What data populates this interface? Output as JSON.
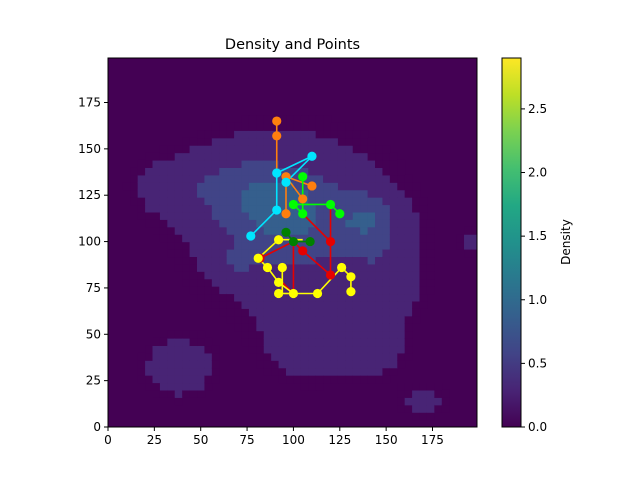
{
  "chart_data": {
    "type": "scatter",
    "title": "Density and Points",
    "xlim": [
      0,
      199
    ],
    "ylim": [
      0,
      199
    ],
    "x_ticks": [
      0,
      25,
      50,
      75,
      100,
      125,
      150,
      175
    ],
    "y_ticks": [
      0,
      25,
      50,
      75,
      100,
      125,
      150,
      175
    ],
    "colorbar": {
      "label": "Density",
      "range": [
        0,
        2.9
      ],
      "ticks": [
        "0.0",
        "0.5",
        "1.0",
        "1.5",
        "2.0",
        "2.5"
      ],
      "colormap": "viridis"
    },
    "density_blobs": [
      {
        "cx": 100,
        "cy": 110,
        "rx": 50,
        "ry": 42,
        "amp": 0.55
      },
      {
        "cx": 140,
        "cy": 112,
        "rx": 16,
        "ry": 14,
        "amp": 0.45
      },
      {
        "cx": 95,
        "cy": 118,
        "rx": 22,
        "ry": 18,
        "amp": 0.35
      },
      {
        "cx": 65,
        "cy": 130,
        "rx": 28,
        "ry": 20,
        "amp": 0.3
      },
      {
        "cx": 30,
        "cy": 130,
        "rx": 18,
        "ry": 14,
        "amp": 0.2
      },
      {
        "cx": 38,
        "cy": 32,
        "rx": 18,
        "ry": 15,
        "amp": 0.35
      },
      {
        "cx": 110,
        "cy": 45,
        "rx": 25,
        "ry": 20,
        "amp": 0.3
      },
      {
        "cx": 145,
        "cy": 42,
        "rx": 15,
        "ry": 14,
        "amp": 0.25
      },
      {
        "cx": 170,
        "cy": 15,
        "rx": 15,
        "ry": 10,
        "amp": 0.2
      },
      {
        "cx": 150,
        "cy": 80,
        "rx": 20,
        "ry": 25,
        "amp": 0.25
      },
      {
        "cx": 70,
        "cy": 90,
        "rx": 10,
        "ry": 8,
        "amp": 0.2
      },
      {
        "cx": 195,
        "cy": 100,
        "rx": 6,
        "ry": 6,
        "amp": 0.25
      }
    ],
    "series": [
      {
        "color": "#ff7f0e",
        "segments": [
          [
            [
              91,
              165
            ],
            [
              91,
              157
            ]
          ],
          [
            [
              91,
              157
            ],
            [
              91,
              137
            ]
          ],
          [
            [
              96,
              135
            ],
            [
              96,
              115
            ]
          ],
          [
            [
              96,
              135
            ],
            [
              105,
              123
            ]
          ],
          [
            [
              96,
              135
            ],
            [
              110,
              130
            ]
          ]
        ],
        "points": [
          [
            91,
            165
          ],
          [
            91,
            157
          ],
          [
            96,
            135
          ],
          [
            96,
            115
          ],
          [
            105,
            123
          ],
          [
            110,
            130
          ]
        ]
      },
      {
        "color": "#00e5ff",
        "segments": [
          [
            [
              91,
              137
            ],
            [
              110,
              146
            ]
          ],
          [
            [
              91,
              137
            ],
            [
              91,
              117
            ]
          ],
          [
            [
              91,
              117
            ],
            [
              77,
              103
            ]
          ],
          [
            [
              96,
              132
            ],
            [
              110,
              146
            ]
          ]
        ],
        "points": [
          [
            91,
            137
          ],
          [
            110,
            146
          ],
          [
            96,
            132
          ],
          [
            91,
            117
          ],
          [
            77,
            103
          ]
        ]
      },
      {
        "color": "#00ff00",
        "segments": [
          [
            [
              105,
              135
            ],
            [
              105,
              115
            ]
          ],
          [
            [
              100,
              120
            ],
            [
              120,
              120
            ]
          ],
          [
            [
              120,
              120
            ],
            [
              125,
              115
            ]
          ],
          [
            [
              100,
              120
            ],
            [
              105,
              115
            ]
          ]
        ],
        "points": [
          [
            105,
            135
          ],
          [
            100,
            120
          ],
          [
            120,
            120
          ],
          [
            125,
            115
          ],
          [
            105,
            115
          ]
        ]
      },
      {
        "color": "#008000",
        "segments": [
          [
            [
              96,
              105
            ],
            [
              100,
              100
            ]
          ],
          [
            [
              100,
              100
            ],
            [
              109,
              100
            ]
          ]
        ],
        "points": [
          [
            96,
            105
          ],
          [
            100,
            100
          ],
          [
            109,
            100
          ]
        ]
      },
      {
        "color": "#e60000",
        "segments": [
          [
            [
              120,
              120
            ],
            [
              120,
              100
            ]
          ],
          [
            [
              105,
              115
            ],
            [
              120,
              100
            ]
          ],
          [
            [
              105,
              95
            ],
            [
              120,
              82
            ]
          ],
          [
            [
              120,
              100
            ],
            [
              120,
              82
            ]
          ],
          [
            [
              82,
              91
            ],
            [
              100,
              100
            ]
          ],
          [
            [
              100,
              100
            ],
            [
              105,
              95
            ]
          ],
          [
            [
              100,
              100
            ],
            [
              100,
              72
            ]
          ],
          [
            [
              92,
              80
            ],
            [
              100,
              72
            ]
          ]
        ],
        "points": [
          [
            120,
            100
          ],
          [
            105,
            95
          ],
          [
            120,
            82
          ],
          [
            82,
            91
          ]
        ]
      },
      {
        "color": "#ffff00",
        "segments": [
          [
            [
              81,
              91
            ],
            [
              92,
              101
            ]
          ],
          [
            [
              92,
              101
            ],
            [
              105,
              101
            ]
          ],
          [
            [
              81,
              91
            ],
            [
              86,
              86
            ]
          ],
          [
            [
              86,
              86
            ],
            [
              92,
              78
            ]
          ],
          [
            [
              94,
              86
            ],
            [
              94,
              72
            ]
          ],
          [
            [
              92,
              72
            ],
            [
              100,
              72
            ]
          ],
          [
            [
              100,
              72
            ],
            [
              113,
              72
            ]
          ],
          [
            [
              113,
              72
            ],
            [
              126,
              86
            ]
          ],
          [
            [
              126,
              86
            ],
            [
              131,
              81
            ]
          ],
          [
            [
              131,
              81
            ],
            [
              131,
              73
            ]
          ],
          [
            [
              92,
              78
            ],
            [
              100,
              72
            ]
          ]
        ],
        "points": [
          [
            81,
            91
          ],
          [
            92,
            101
          ],
          [
            86,
            86
          ],
          [
            92,
            78
          ],
          [
            94,
            86
          ],
          [
            92,
            72
          ],
          [
            100,
            72
          ],
          [
            113,
            72
          ],
          [
            126,
            86
          ],
          [
            131,
            81
          ],
          [
            131,
            73
          ]
        ]
      }
    ]
  }
}
